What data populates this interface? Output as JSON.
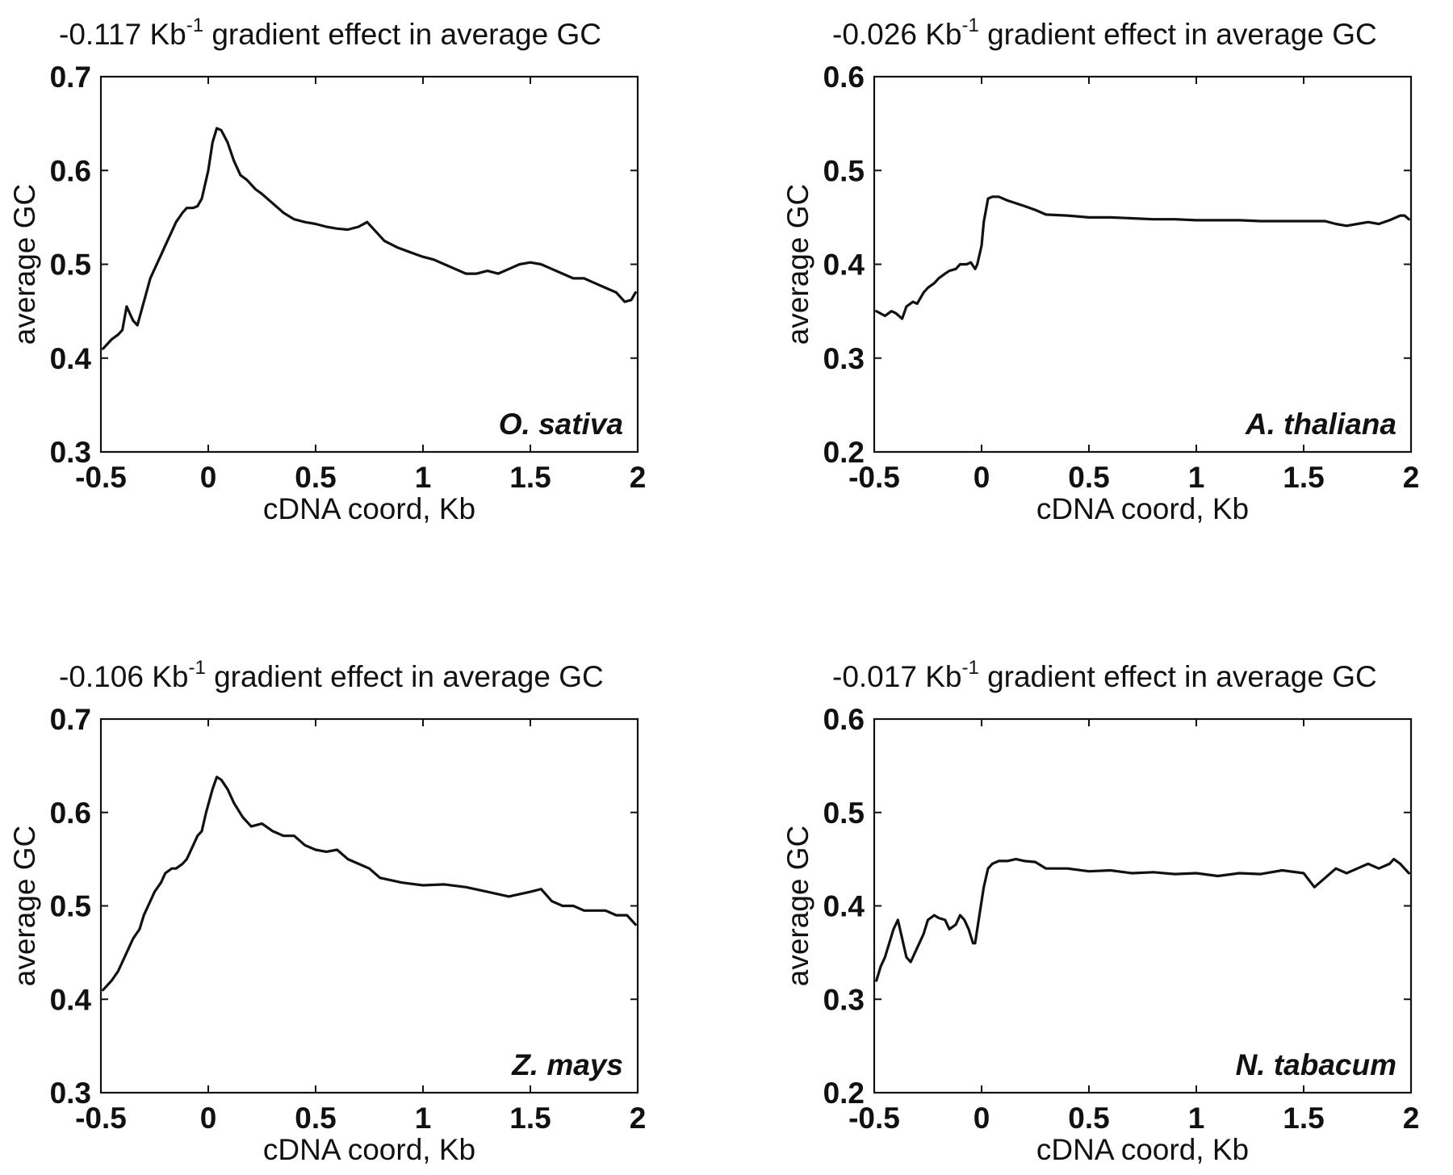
{
  "chart_data": [
    {
      "type": "line",
      "title_prefix": "-0.117 Kb",
      "title_exponent": "-1",
      "title_suffix": " gradient effect in average GC",
      "xlabel": "cDNA coord, Kb",
      "ylabel": "average GC",
      "annotation": "O. sativa",
      "xlim": [
        -0.5,
        2.0
      ],
      "ylim": [
        0.3,
        0.7
      ],
      "xticks": [
        "-0.5",
        "0",
        "0.5",
        "1",
        "1.5",
        "2"
      ],
      "yticks": [
        "0.3",
        "0.4",
        "0.5",
        "0.6",
        "0.7"
      ],
      "grid": false,
      "series": [
        {
          "x": [
            -0.49,
            -0.45,
            -0.42,
            -0.4,
            -0.38,
            -0.35,
            -0.33,
            -0.3,
            -0.27,
            -0.25,
            -0.22,
            -0.2,
            -0.17,
            -0.15,
            -0.12,
            -0.1,
            -0.07,
            -0.05,
            -0.03,
            0.0,
            0.02,
            0.04,
            0.06,
            0.09,
            0.12,
            0.15,
            0.18,
            0.22,
            0.25,
            0.3,
            0.35,
            0.4,
            0.45,
            0.5,
            0.55,
            0.6,
            0.65,
            0.7,
            0.74,
            0.78,
            0.82,
            0.88,
            0.95,
            1.0,
            1.05,
            1.1,
            1.15,
            1.2,
            1.25,
            1.3,
            1.35,
            1.4,
            1.45,
            1.5,
            1.55,
            1.6,
            1.65,
            1.7,
            1.75,
            1.8,
            1.85,
            1.9,
            1.94,
            1.97,
            1.99
          ],
          "y": [
            0.41,
            0.42,
            0.425,
            0.43,
            0.455,
            0.44,
            0.435,
            0.46,
            0.485,
            0.495,
            0.51,
            0.52,
            0.535,
            0.545,
            0.555,
            0.56,
            0.56,
            0.562,
            0.57,
            0.6,
            0.63,
            0.645,
            0.643,
            0.63,
            0.61,
            0.595,
            0.59,
            0.58,
            0.575,
            0.565,
            0.555,
            0.548,
            0.545,
            0.543,
            0.54,
            0.538,
            0.537,
            0.54,
            0.545,
            0.535,
            0.525,
            0.518,
            0.512,
            0.508,
            0.505,
            0.5,
            0.495,
            0.49,
            0.49,
            0.493,
            0.49,
            0.495,
            0.5,
            0.502,
            0.5,
            0.495,
            0.49,
            0.485,
            0.485,
            0.48,
            0.475,
            0.47,
            0.46,
            0.462,
            0.47
          ]
        }
      ]
    },
    {
      "type": "line",
      "title_prefix": "-0.026 Kb",
      "title_exponent": "-1",
      "title_suffix": " gradient effect in average GC",
      "xlabel": "cDNA coord, Kb",
      "ylabel": "average GC",
      "annotation": "A. thaliana",
      "xlim": [
        -0.5,
        2.0
      ],
      "ylim": [
        0.2,
        0.6
      ],
      "xticks": [
        "-0.5",
        "0",
        "0.5",
        "1",
        "1.5",
        "2"
      ],
      "yticks": [
        "0.2",
        "0.3",
        "0.4",
        "0.5",
        "0.6"
      ],
      "grid": false,
      "series": [
        {
          "x": [
            -0.49,
            -0.45,
            -0.42,
            -0.4,
            -0.37,
            -0.35,
            -0.32,
            -0.3,
            -0.27,
            -0.25,
            -0.22,
            -0.2,
            -0.17,
            -0.15,
            -0.12,
            -0.1,
            -0.07,
            -0.05,
            -0.03,
            -0.02,
            0.0,
            0.01,
            0.03,
            0.05,
            0.08,
            0.12,
            0.16,
            0.2,
            0.25,
            0.3,
            0.4,
            0.5,
            0.6,
            0.7,
            0.8,
            0.9,
            1.0,
            1.1,
            1.2,
            1.3,
            1.4,
            1.5,
            1.6,
            1.65,
            1.7,
            1.75,
            1.8,
            1.85,
            1.9,
            1.95,
            1.97,
            1.99
          ],
          "y": [
            0.35,
            0.345,
            0.35,
            0.348,
            0.342,
            0.355,
            0.36,
            0.358,
            0.37,
            0.375,
            0.38,
            0.385,
            0.39,
            0.393,
            0.395,
            0.4,
            0.4,
            0.402,
            0.395,
            0.4,
            0.42,
            0.445,
            0.47,
            0.472,
            0.472,
            0.468,
            0.465,
            0.462,
            0.458,
            0.453,
            0.452,
            0.45,
            0.45,
            0.449,
            0.448,
            0.448,
            0.447,
            0.447,
            0.447,
            0.446,
            0.446,
            0.446,
            0.446,
            0.443,
            0.441,
            0.443,
            0.445,
            0.443,
            0.447,
            0.452,
            0.452,
            0.448
          ]
        }
      ]
    },
    {
      "type": "line",
      "title_prefix": "-0.106 Kb",
      "title_exponent": "-1",
      "title_suffix": " gradient effect in average GC",
      "xlabel": "cDNA coord, Kb",
      "ylabel": "average GC",
      "annotation": "Z. mays",
      "xlim": [
        -0.5,
        2.0
      ],
      "ylim": [
        0.3,
        0.7
      ],
      "xticks": [
        "-0.5",
        "0",
        "0.5",
        "1",
        "1.5",
        "2"
      ],
      "yticks": [
        "0.3",
        "0.4",
        "0.5",
        "0.6",
        "0.7"
      ],
      "grid": false,
      "series": [
        {
          "x": [
            -0.49,
            -0.45,
            -0.42,
            -0.4,
            -0.37,
            -0.35,
            -0.32,
            -0.3,
            -0.27,
            -0.25,
            -0.22,
            -0.2,
            -0.17,
            -0.15,
            -0.12,
            -0.1,
            -0.07,
            -0.05,
            -0.03,
            -0.01,
            0.02,
            0.04,
            0.06,
            0.09,
            0.12,
            0.16,
            0.2,
            0.25,
            0.3,
            0.35,
            0.4,
            0.45,
            0.5,
            0.55,
            0.6,
            0.65,
            0.7,
            0.75,
            0.8,
            0.9,
            1.0,
            1.1,
            1.2,
            1.3,
            1.4,
            1.5,
            1.55,
            1.6,
            1.65,
            1.7,
            1.75,
            1.8,
            1.85,
            1.9,
            1.95,
            1.99
          ],
          "y": [
            0.41,
            0.42,
            0.43,
            0.44,
            0.455,
            0.465,
            0.475,
            0.49,
            0.505,
            0.515,
            0.525,
            0.535,
            0.54,
            0.54,
            0.545,
            0.55,
            0.565,
            0.575,
            0.58,
            0.6,
            0.625,
            0.638,
            0.635,
            0.625,
            0.61,
            0.595,
            0.585,
            0.588,
            0.58,
            0.575,
            0.575,
            0.565,
            0.56,
            0.558,
            0.56,
            0.55,
            0.545,
            0.54,
            0.53,
            0.525,
            0.522,
            0.523,
            0.52,
            0.515,
            0.51,
            0.515,
            0.518,
            0.505,
            0.5,
            0.5,
            0.495,
            0.495,
            0.495,
            0.49,
            0.49,
            0.48
          ]
        }
      ]
    },
    {
      "type": "line",
      "title_prefix": "-0.017 Kb",
      "title_exponent": "-1",
      "title_suffix": " gradient effect in average GC",
      "xlabel": "cDNA coord, Kb",
      "ylabel": "average GC",
      "annotation": "N. tabacum",
      "xlim": [
        -0.5,
        2.0
      ],
      "ylim": [
        0.2,
        0.6
      ],
      "xticks": [
        "-0.5",
        "0",
        "0.5",
        "1",
        "1.5",
        "2"
      ],
      "yticks": [
        "0.2",
        "0.3",
        "0.4",
        "0.5",
        "0.6"
      ],
      "grid": false,
      "series": [
        {
          "x": [
            -0.49,
            -0.47,
            -0.45,
            -0.43,
            -0.41,
            -0.39,
            -0.37,
            -0.35,
            -0.33,
            -0.3,
            -0.27,
            -0.25,
            -0.22,
            -0.2,
            -0.17,
            -0.15,
            -0.12,
            -0.1,
            -0.08,
            -0.06,
            -0.04,
            -0.03,
            -0.01,
            0.01,
            0.03,
            0.05,
            0.08,
            0.12,
            0.16,
            0.2,
            0.25,
            0.3,
            0.4,
            0.5,
            0.6,
            0.7,
            0.8,
            0.9,
            1.0,
            1.1,
            1.2,
            1.3,
            1.4,
            1.5,
            1.55,
            1.6,
            1.65,
            1.7,
            1.75,
            1.8,
            1.85,
            1.9,
            1.92,
            1.95,
            1.99
          ],
          "y": [
            0.32,
            0.335,
            0.345,
            0.36,
            0.375,
            0.385,
            0.365,
            0.345,
            0.34,
            0.355,
            0.37,
            0.385,
            0.39,
            0.387,
            0.385,
            0.375,
            0.38,
            0.39,
            0.385,
            0.375,
            0.36,
            0.36,
            0.39,
            0.42,
            0.44,
            0.445,
            0.448,
            0.448,
            0.45,
            0.448,
            0.447,
            0.44,
            0.44,
            0.437,
            0.438,
            0.435,
            0.436,
            0.434,
            0.435,
            0.432,
            0.435,
            0.434,
            0.438,
            0.435,
            0.42,
            0.43,
            0.44,
            0.435,
            0.44,
            0.445,
            0.44,
            0.445,
            0.45,
            0.445,
            0.435
          ]
        }
      ]
    }
  ]
}
